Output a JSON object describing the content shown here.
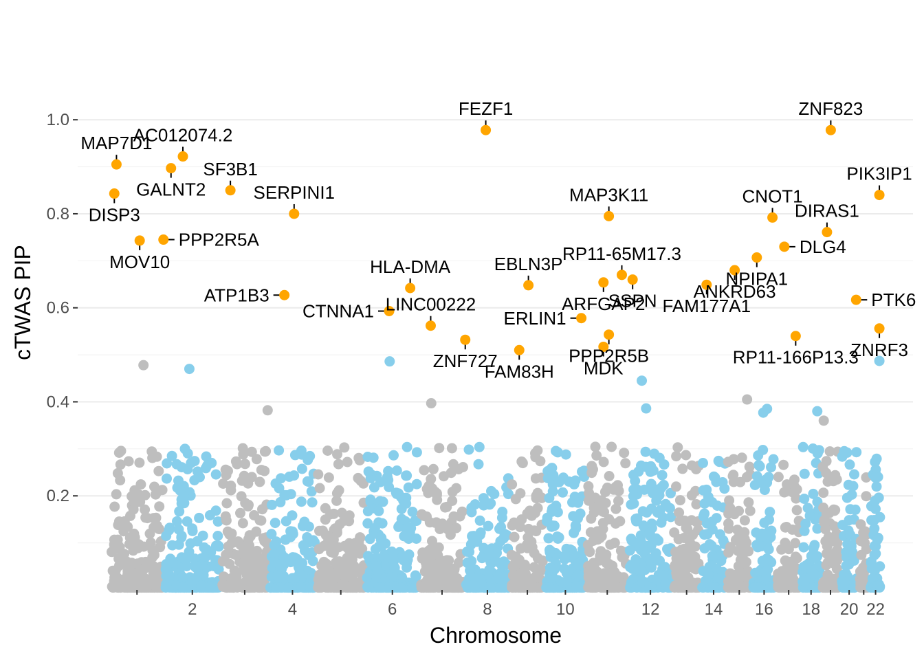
{
  "chart_data": {
    "type": "scatter",
    "subtype": "manhattan",
    "title": "",
    "xlabel": "Chromosome",
    "ylabel": "cTWAS PIP",
    "ylim": [
      0,
      1.05
    ],
    "y_ticks": [
      0.2,
      0.4,
      0.6,
      0.8,
      1.0
    ],
    "y_tick_labels": [
      "0.2",
      "0.4",
      "0.6",
      "0.8",
      "1.0"
    ],
    "x_tick_labels": [
      "2",
      "4",
      "6",
      "8",
      "10",
      "12",
      "14",
      "16",
      "18",
      "20",
      "22"
    ],
    "chromosomes": [
      {
        "chr": 1,
        "start": 0.0,
        "end": 1.0
      },
      {
        "chr": 2,
        "start": 1.0,
        "end": 2.05
      },
      {
        "chr": 3,
        "start": 2.05,
        "end": 2.94
      },
      {
        "chr": 4,
        "start": 2.94,
        "end": 3.82
      },
      {
        "chr": 5,
        "start": 3.82,
        "end": 4.73
      },
      {
        "chr": 6,
        "start": 4.73,
        "end": 5.73
      },
      {
        "chr": 7,
        "start": 5.73,
        "end": 6.57
      },
      {
        "chr": 8,
        "start": 6.57,
        "end": 7.41
      },
      {
        "chr": 9,
        "start": 7.41,
        "end": 8.05
      },
      {
        "chr": 10,
        "start": 8.05,
        "end": 8.82
      },
      {
        "chr": 11,
        "start": 8.82,
        "end": 9.6
      },
      {
        "chr": 12,
        "start": 9.6,
        "end": 10.42
      },
      {
        "chr": 13,
        "start": 10.42,
        "end": 10.94
      },
      {
        "chr": 14,
        "start": 10.94,
        "end": 11.42
      },
      {
        "chr": 15,
        "start": 11.42,
        "end": 11.89
      },
      {
        "chr": 16,
        "start": 11.89,
        "end": 12.34
      },
      {
        "chr": 17,
        "start": 12.34,
        "end": 12.8
      },
      {
        "chr": 18,
        "start": 12.8,
        "end": 13.17
      },
      {
        "chr": 19,
        "start": 13.17,
        "end": 13.52
      },
      {
        "chr": 20,
        "start": 13.52,
        "end": 13.86
      },
      {
        "chr": 21,
        "start": 13.86,
        "end": 14.06
      },
      {
        "chr": 22,
        "start": 14.06,
        "end": 14.3
      }
    ],
    "colors": {
      "odd_chromosome": "#bebebe",
      "even_chromosome": "#87ceeb",
      "highlighted": "#ffa500",
      "grid": "#ebebeb",
      "axis_text": "#4d4d4d"
    },
    "highlighted_genes": [
      {
        "gene": "MAP7D1",
        "pos": 0.12,
        "pip": 0.905,
        "label_side": "above"
      },
      {
        "gene": "DISP3",
        "pos": 0.08,
        "pip": 0.843,
        "label_side": "below"
      },
      {
        "gene": "MOV10",
        "pos": 0.55,
        "pip": 0.743,
        "label_side": "below"
      },
      {
        "gene": "GALNT2",
        "pos": 1.13,
        "pip": 0.897,
        "label_side": "below"
      },
      {
        "gene": "AC012074.2",
        "pos": 1.35,
        "pip": 0.922,
        "label_side": "above"
      },
      {
        "gene": "PPP2R5A",
        "pos": 0.99,
        "pip": 0.745,
        "label_side": "right"
      },
      {
        "gene": "SF3B1",
        "pos": 2.23,
        "pip": 0.85,
        "label_side": "above"
      },
      {
        "gene": "SERPINI1",
        "pos": 3.41,
        "pip": 0.8,
        "label_side": "above"
      },
      {
        "gene": "ATP1B3",
        "pos": 3.23,
        "pip": 0.627,
        "label_side": "left"
      },
      {
        "gene": "HLA-DMA",
        "pos": 5.56,
        "pip": 0.642,
        "label_side": "above"
      },
      {
        "gene": "CTNNA1",
        "pos": 5.17,
        "pip": 0.593,
        "label_side": "left"
      },
      {
        "gene": "LINC00222",
        "pos": 5.94,
        "pip": 0.562,
        "label_side": "above"
      },
      {
        "gene": "ZNF727",
        "pos": 6.58,
        "pip": 0.532,
        "label_side": "below"
      },
      {
        "gene": "FEZF1",
        "pos": 6.96,
        "pip": 0.978,
        "label_side": "above"
      },
      {
        "gene": "FAM83H",
        "pos": 7.58,
        "pip": 0.51,
        "label_side": "below"
      },
      {
        "gene": "EBLN3P",
        "pos": 7.75,
        "pip": 0.648,
        "label_side": "above"
      },
      {
        "gene": "ERLIN1",
        "pos": 8.73,
        "pip": 0.578,
        "label_side": "left"
      },
      {
        "gene": "ARFGAP2",
        "pos": 9.14,
        "pip": 0.654,
        "label_side": "below"
      },
      {
        "gene": "MAP3K11",
        "pos": 9.24,
        "pip": 0.795,
        "label_side": "above"
      },
      {
        "gene": "PPP2R5B",
        "pos": 9.24,
        "pip": 0.543,
        "label_side": "below"
      },
      {
        "gene": "MDK",
        "pos": 9.14,
        "pip": 0.517,
        "label_side": "below"
      },
      {
        "gene": "RP11-65M17.3",
        "pos": 9.48,
        "pip": 0.67,
        "label_side": "above"
      },
      {
        "gene": "SSPN",
        "pos": 9.68,
        "pip": 0.66,
        "label_side": "below"
      },
      {
        "gene": "FAM177A1",
        "pos": 11.05,
        "pip": 0.649,
        "label_side": "below"
      },
      {
        "gene": "ANKRD63",
        "pos": 11.57,
        "pip": 0.68,
        "label_side": "below"
      },
      {
        "gene": "NPIPA1",
        "pos": 11.98,
        "pip": 0.707,
        "label_side": "below"
      },
      {
        "gene": "CNOT1",
        "pos": 12.27,
        "pip": 0.792,
        "label_side": "above"
      },
      {
        "gene": "DLG4",
        "pos": 12.49,
        "pip": 0.73,
        "label_side": "right"
      },
      {
        "gene": "RP11-166P13.3",
        "pos": 12.7,
        "pip": 0.54,
        "label_side": "below"
      },
      {
        "gene": "ZNF823",
        "pos": 13.35,
        "pip": 0.978,
        "label_side": "above"
      },
      {
        "gene": "DIRAS1",
        "pos": 13.28,
        "pip": 0.761,
        "label_side": "above"
      },
      {
        "gene": "PIK3IP1",
        "pos": 14.25,
        "pip": 0.84,
        "label_side": "above"
      },
      {
        "gene": "PTK6",
        "pos": 13.82,
        "pip": 0.617,
        "label_side": "right"
      },
      {
        "gene": "ZNRF3",
        "pos": 14.25,
        "pip": 0.556,
        "label_side": "below"
      }
    ],
    "notable_background_points": [
      {
        "pos": 0.62,
        "pip": 0.478
      },
      {
        "pos": 1.47,
        "pip": 0.47
      },
      {
        "pos": 2.92,
        "pip": 0.382
      },
      {
        "pos": 5.18,
        "pip": 0.486
      },
      {
        "pos": 5.95,
        "pip": 0.397
      },
      {
        "pos": 9.85,
        "pip": 0.445
      },
      {
        "pos": 9.93,
        "pip": 0.386
      },
      {
        "pos": 11.8,
        "pip": 0.405
      },
      {
        "pos": 12.1,
        "pip": 0.377
      },
      {
        "pos": 12.17,
        "pip": 0.385
      },
      {
        "pos": 13.1,
        "pip": 0.38
      },
      {
        "pos": 13.22,
        "pip": 0.36
      },
      {
        "pos": 13.6,
        "pip": 0.295
      },
      {
        "pos": 14.25,
        "pip": 0.487
      }
    ]
  }
}
